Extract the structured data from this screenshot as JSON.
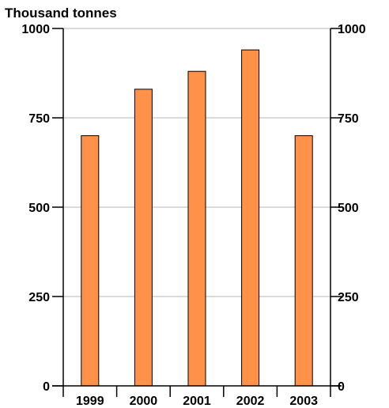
{
  "chart_data": {
    "type": "bar",
    "unit_label": "Thousand tonnes",
    "categories": [
      "1999",
      "2000",
      "2001",
      "2002",
      "2003"
    ],
    "values": [
      700,
      830,
      880,
      940,
      700
    ],
    "ylim": [
      0,
      1000
    ],
    "yticks": [
      0,
      250,
      500,
      750,
      1000
    ],
    "ytick_labels": [
      "0",
      "250",
      "500",
      "750",
      "1000"
    ],
    "grid": true,
    "secondary_axis": "right",
    "bar_color": "#ff9148",
    "bar_edge_color": "#000000",
    "grid_color": "#b5b5b5"
  }
}
